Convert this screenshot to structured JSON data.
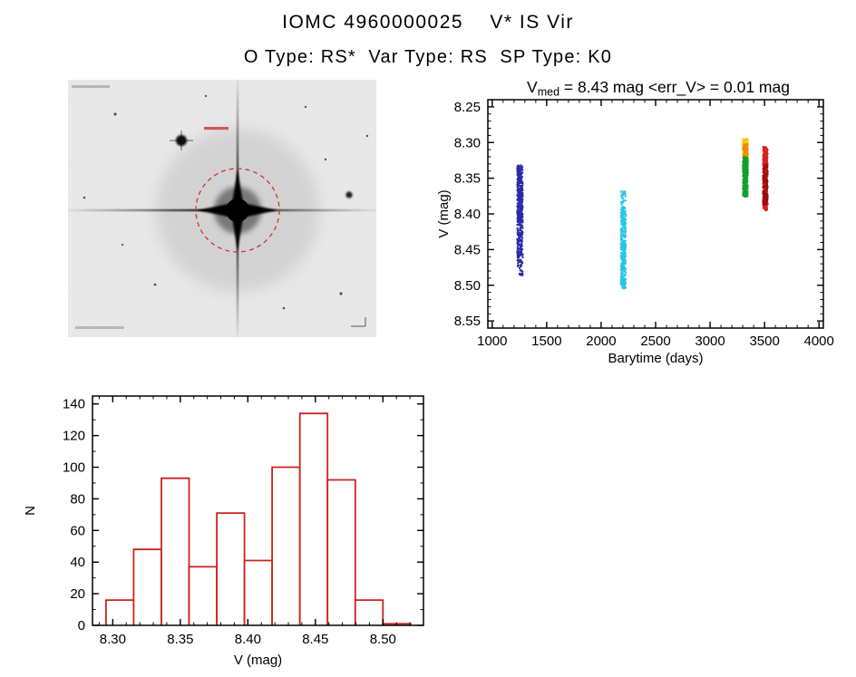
{
  "header": {
    "title": "IOMC 4960000025    V* IS Vir",
    "subtitle": "O Type: RS*  Var Type: RS  SP Type: K0"
  },
  "star_image": {
    "background": "#ebebeb",
    "target_circle_color": "#cc3333"
  },
  "chart_data": [
    {
      "type": "scatter",
      "name": "light-curve",
      "title_pre": "V",
      "title_sub": "med",
      "title_post": " = 8.43 mag <err_V> = 0.01 mag",
      "v_med_mag": 8.43,
      "err_v_mag": 0.01,
      "xlabel": "Barytime (days)",
      "ylabel": "V (mag)",
      "xlim": [
        960,
        4040
      ],
      "ylim_top": 8.24,
      "ylim_bottom": 8.56,
      "y_axis_inverted": true,
      "xtick_values": [
        1000,
        1500,
        2000,
        2500,
        3000,
        3500,
        4000
      ],
      "xtick_labels": [
        "1000",
        "1500",
        "2000",
        "2500",
        "3000",
        "3500",
        "4000"
      ],
      "ytick_values": [
        8.25,
        8.3,
        8.35,
        8.4,
        8.45,
        8.5,
        8.55
      ],
      "ytick_labels": [
        "8.25",
        "8.30",
        "8.35",
        "8.40",
        "8.45",
        "8.50",
        "8.55"
      ],
      "x_minor_step": 100,
      "y_minor_step": 0.01,
      "clusters": [
        {
          "name": "epoch-1",
          "x_min": 1230,
          "x_max": 1280,
          "bands": [
            {
              "v_min": 8.332,
              "v_max": 8.412,
              "color": "#2b2ba8",
              "n": 340
            },
            {
              "v_min": 8.408,
              "v_max": 8.462,
              "color": "#2b2ba8",
              "n": 110
            },
            {
              "v_min": 8.455,
              "v_max": 8.487,
              "color": "#2b2ba8",
              "n": 45
            }
          ]
        },
        {
          "name": "epoch-2",
          "x_min": 2182,
          "x_max": 2226,
          "bands": [
            {
              "v_min": 8.368,
              "v_max": 8.392,
              "color": "#29c5e8",
              "n": 30
            },
            {
              "v_min": 8.39,
              "v_max": 8.505,
              "color": "#29c5e8",
              "n": 360
            }
          ]
        },
        {
          "name": "epoch-3",
          "x_min": 3302,
          "x_max": 3346,
          "bands": [
            {
              "v_min": 8.295,
              "v_max": 8.322,
              "color": "#ffc400",
              "n": 110
            },
            {
              "v_min": 8.302,
              "v_max": 8.32,
              "color": "#f08a00",
              "n": 55
            },
            {
              "v_min": 8.32,
              "v_max": 8.376,
              "color": "#11a02e",
              "n": 300
            }
          ]
        },
        {
          "name": "epoch-4",
          "x_min": 3486,
          "x_max": 3528,
          "bands": [
            {
              "v_min": 8.306,
              "v_max": 8.396,
              "color": "#d62222",
              "n": 360
            },
            {
              "v_min": 8.33,
              "v_max": 8.388,
              "color": "#9b0f0f",
              "n": 130
            }
          ]
        }
      ]
    },
    {
      "type": "bar",
      "name": "v-magnitude-histogram",
      "xlabel": "V (mag)",
      "ylabel": "N",
      "xlim": [
        8.285,
        8.53
      ],
      "ylim": [
        0,
        145
      ],
      "xtick_values": [
        8.3,
        8.35,
        8.4,
        8.45,
        8.5
      ],
      "xtick_labels": [
        "8.30",
        "8.35",
        "8.40",
        "8.45",
        "8.50"
      ],
      "ytick_values": [
        0,
        20,
        40,
        60,
        80,
        100,
        120,
        140
      ],
      "ytick_labels": [
        "0",
        "20",
        "40",
        "60",
        "80",
        "100",
        "120",
        "140"
      ],
      "x_minor_step": 0.01,
      "y_minor_step": 10,
      "bin_start": 8.295,
      "bin_width": 0.0205,
      "values": [
        16,
        48,
        93,
        37,
        71,
        41,
        100,
        134,
        92,
        16,
        1
      ],
      "bar_color": "#cc2222",
      "bar_fill": "#ffffff"
    }
  ]
}
